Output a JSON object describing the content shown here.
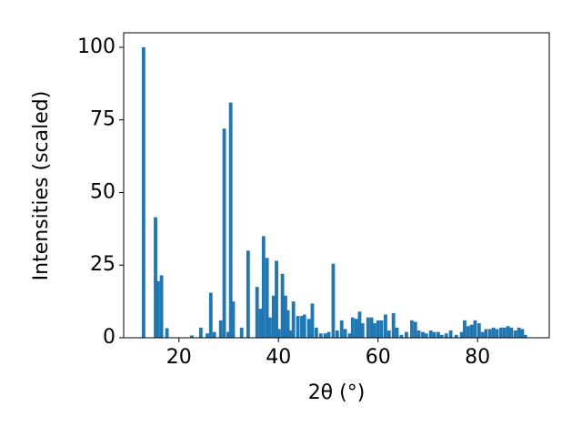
{
  "chart_data": {
    "type": "bar",
    "xlabel": "2θ (°)",
    "ylabel": "Intensities (scaled)",
    "color": "#1f77b4",
    "grid": false,
    "xlim": [
      8.9,
      94.4
    ],
    "ylim": [
      0,
      105
    ],
    "xticks": [
      20,
      40,
      60,
      80
    ],
    "yticks": [
      0,
      25,
      50,
      75,
      100
    ],
    "x": [
      12.9,
      15.3,
      15.8,
      16.5,
      17.6,
      22.6,
      24.4,
      25.7,
      26.4,
      27.1,
      28.4,
      29.1,
      29.9,
      30.4,
      30.9,
      32.6,
      33.9,
      35.7,
      36.4,
      37,
      37.7,
      38.3,
      39,
      39.6,
      40.1,
      40.8,
      41.4,
      41.9,
      42.5,
      43,
      43.9,
      44.7,
      45.2,
      46.1,
      46.8,
      47.6,
      48.5,
      49.4,
      50.1,
      51,
      51.8,
      52.7,
      53.4,
      54.3,
      54.9,
      55.6,
      56.3,
      56.9,
      58,
      58.7,
      59.3,
      60,
      60.7,
      61.5,
      62.2,
      63.1,
      63.8,
      64.7,
      65.7,
      66.8,
      67.5,
      68.2,
      69,
      69.7,
      70.6,
      71.3,
      72.1,
      72.8,
      73.7,
      74.6,
      75.7,
      76.8,
      77.4,
      78.1,
      78.8,
      79.5,
      80.3,
      81,
      81.7,
      82.5,
      83.2,
      83.9,
      84.7,
      85.4,
      86.1,
      86.8,
      87.6,
      88.3,
      89,
      89.6
    ],
    "values": [
      100,
      41.5,
      19.5,
      21.5,
      3.3,
      0.8,
      3.5,
      1.5,
      15.5,
      2,
      6,
      72,
      2,
      81,
      12.5,
      3.5,
      30,
      17.5,
      10,
      35,
      27.5,
      7,
      14.5,
      26.5,
      3,
      22,
      14.5,
      9.5,
      2.5,
      12.5,
      7.5,
      7.5,
      8,
      6.5,
      11.8,
      3.5,
      1.5,
      1.5,
      2,
      25.5,
      2.5,
      6,
      3,
      1.5,
      7,
      6.5,
      9,
      5,
      7,
      7,
      5,
      6,
      6,
      8,
      2.5,
      8.5,
      3.5,
      1,
      2,
      6,
      5.5,
      2.5,
      2,
      1.5,
      2.5,
      2,
      2,
      1,
      1.5,
      2.5,
      1,
      2,
      6,
      4,
      4.5,
      6,
      5,
      2,
      3,
      3,
      3.5,
      3,
      3.5,
      3.5,
      4,
      3.5,
      2.5,
      3.5,
      3,
      1
    ]
  }
}
